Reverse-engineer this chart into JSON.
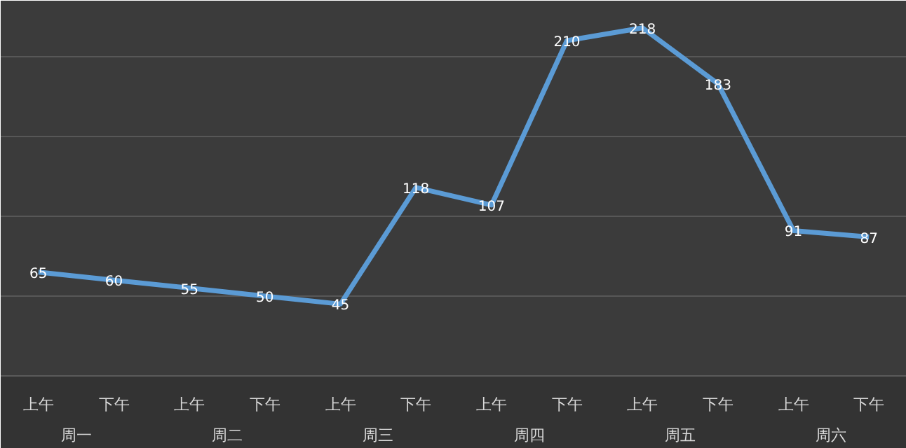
{
  "chart_data": {
    "type": "line",
    "categories": [
      "上午",
      "下午",
      "上午",
      "下午",
      "上午",
      "下午",
      "上午",
      "下午",
      "上午",
      "下午",
      "上午",
      "下午"
    ],
    "annotations": [
      "周一",
      "周二",
      "周三",
      "周四",
      "周五",
      "周六"
    ],
    "series": [
      {
        "color": "#5b9bd5",
        "values": [
          65,
          60,
          55,
          50,
          45,
          118,
          107,
          210,
          218,
          183,
          91,
          87
        ]
      }
    ],
    "ylim": [
      0,
      235
    ],
    "yticks": [
      {
        "value": 0,
        "label": null
      },
      {
        "value": 50,
        "label": null
      },
      {
        "value": 100,
        "label": null
      },
      {
        "value": 150,
        "label": null
      },
      {
        "value": 200,
        "label": null
      }
    ],
    "tick_labels": "x",
    "grid": "y",
    "data_labels": true,
    "marker": "none",
    "line_style": "solid"
  }
}
